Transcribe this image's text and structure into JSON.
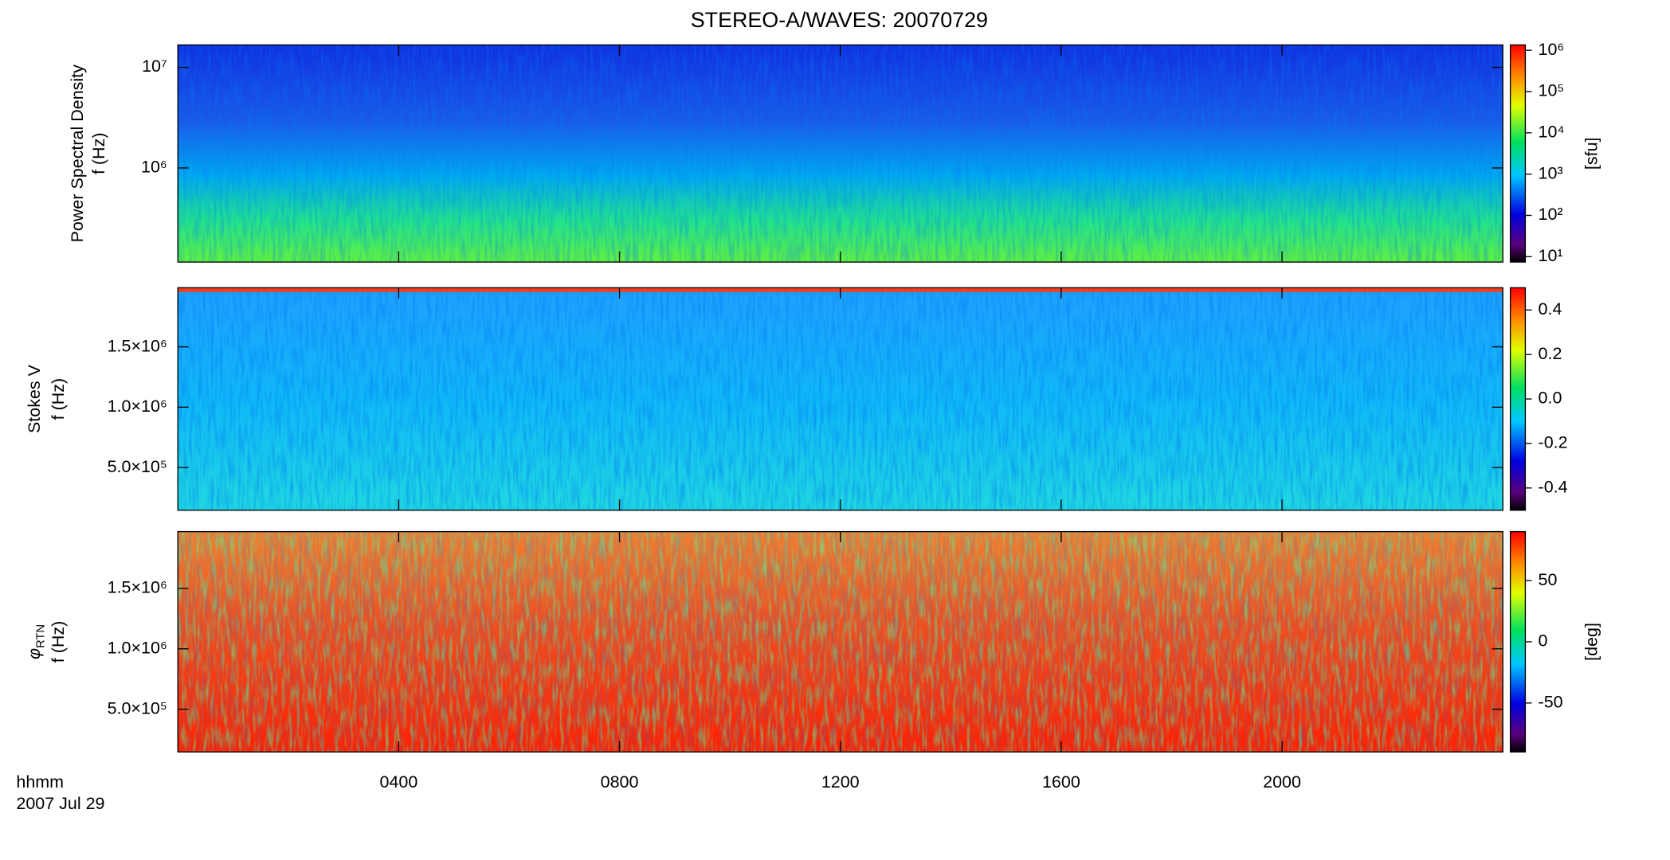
{
  "chart_data": {
    "type": "spectrogram",
    "title": "STEREO-A/WAVES: 20070729",
    "xlabel": "hhmm",
    "date": "2007 Jul 29",
    "xlim": [
      0,
      24
    ],
    "xticks": [
      {
        "value": 4,
        "label": "0400"
      },
      {
        "value": 8,
        "label": "0800"
      },
      {
        "value": 12,
        "label": "1200"
      },
      {
        "value": 16,
        "label": "1600"
      },
      {
        "value": 20,
        "label": "2000"
      }
    ],
    "panels": [
      {
        "ylabel": "Power Spectral Density",
        "yunit": "f (Hz)",
        "yscale": "log",
        "ylim": [
          116000,
          16700000
        ],
        "yticks": [
          {
            "value": 1000000,
            "label": "10⁶"
          },
          {
            "value": 10000000,
            "label": "10⁷"
          }
        ],
        "cscale": "log",
        "clim": [
          7.4,
          1350000
        ],
        "cticks": [
          {
            "value": 10,
            "label": "10¹"
          },
          {
            "value": 100,
            "label": "10²"
          },
          {
            "value": 1000,
            "label": "10³"
          },
          {
            "value": 10000,
            "label": "10⁴"
          },
          {
            "value": 100000,
            "label": "10⁵"
          },
          {
            "value": 1000000,
            "label": "10⁶"
          }
        ],
        "clabel": "[sfu]"
      },
      {
        "ylabel": "Stokes V",
        "yunit": "f (Hz)",
        "yscale": "linear",
        "ylim": [
          146000,
          1990000
        ],
        "yticks": [
          {
            "value": 500000,
            "label": "5.0×10⁵"
          },
          {
            "value": 1000000,
            "label": "1.0×10⁶"
          },
          {
            "value": 1500000,
            "label": "1.5×10⁶"
          }
        ],
        "cscale": "linear",
        "clim": [
          -0.5,
          0.5
        ],
        "cticks": [
          0.4,
          0.2,
          {
            "value": 0,
            "label": "0.0"
          },
          -0.2,
          -0.4
        ]
      },
      {
        "ylabel": "φ",
        "ylabel_sub": "RTN",
        "yunit": "f (Hz)",
        "yscale": "linear",
        "ylim": [
          146000,
          1970000
        ],
        "yticks": [
          {
            "value": 500000,
            "label": "5.0×10⁵"
          },
          {
            "value": 1000000,
            "label": "1.0×10⁶"
          },
          {
            "value": 1500000,
            "label": "1.5×10⁶"
          }
        ],
        "cscale": "linear",
        "clim": [
          -90,
          90
        ],
        "cticks": [
          50,
          0,
          -50
        ],
        "clabel": "[deg]"
      }
    ]
  }
}
